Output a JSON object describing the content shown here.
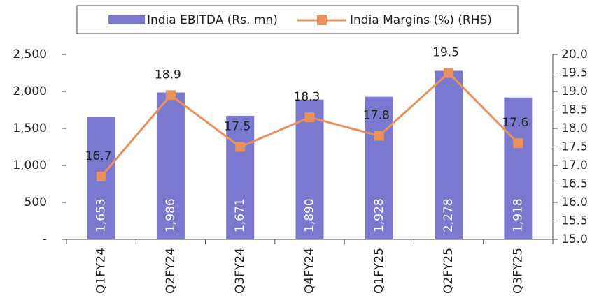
{
  "chart_data": {
    "type": "combo",
    "categories": [
      "Q1FY24",
      "Q2FY24",
      "Q3FY24",
      "Q4FY24",
      "Q1FY25",
      "Q2FY25",
      "Q3FY25"
    ],
    "series": [
      {
        "name": "India EBITDA (Rs. mn)",
        "type": "bar",
        "color": "#7b78d0",
        "values": [
          1653,
          1986,
          1671,
          1890,
          1928,
          2278,
          1918
        ],
        "value_labels": [
          "1,653",
          "1,986",
          "1,671",
          "1,890",
          "1,928",
          "2,278",
          "1,918"
        ]
      },
      {
        "name": "India Margins (%) (RHS)",
        "type": "line",
        "axis": "y2",
        "color": "#e8915c",
        "values": [
          16.7,
          18.9,
          17.5,
          18.3,
          17.8,
          19.5,
          17.6
        ]
      }
    ],
    "ylim": [
      0,
      2500
    ],
    "yticks": [
      {
        "value": 0,
        "label": "-"
      },
      500,
      {
        "value": 1000,
        "label": "1,000"
      },
      {
        "value": 1500,
        "label": "1,500"
      },
      {
        "value": 2000,
        "label": "2,000"
      },
      {
        "value": 2500,
        "label": "2,500"
      }
    ],
    "y2lim": [
      15,
      20
    ],
    "y2ticks": [
      {
        "value": 15,
        "label": "15.0"
      },
      15.5,
      {
        "value": 16,
        "label": "16.0"
      },
      16.5,
      {
        "value": 17,
        "label": "17.0"
      },
      17.5,
      {
        "value": 18,
        "label": "18.0"
      },
      18.5,
      {
        "value": 19,
        "label": "19.0"
      },
      19.5,
      {
        "value": 20,
        "label": "20.0"
      }
    ],
    "legend": "top"
  }
}
